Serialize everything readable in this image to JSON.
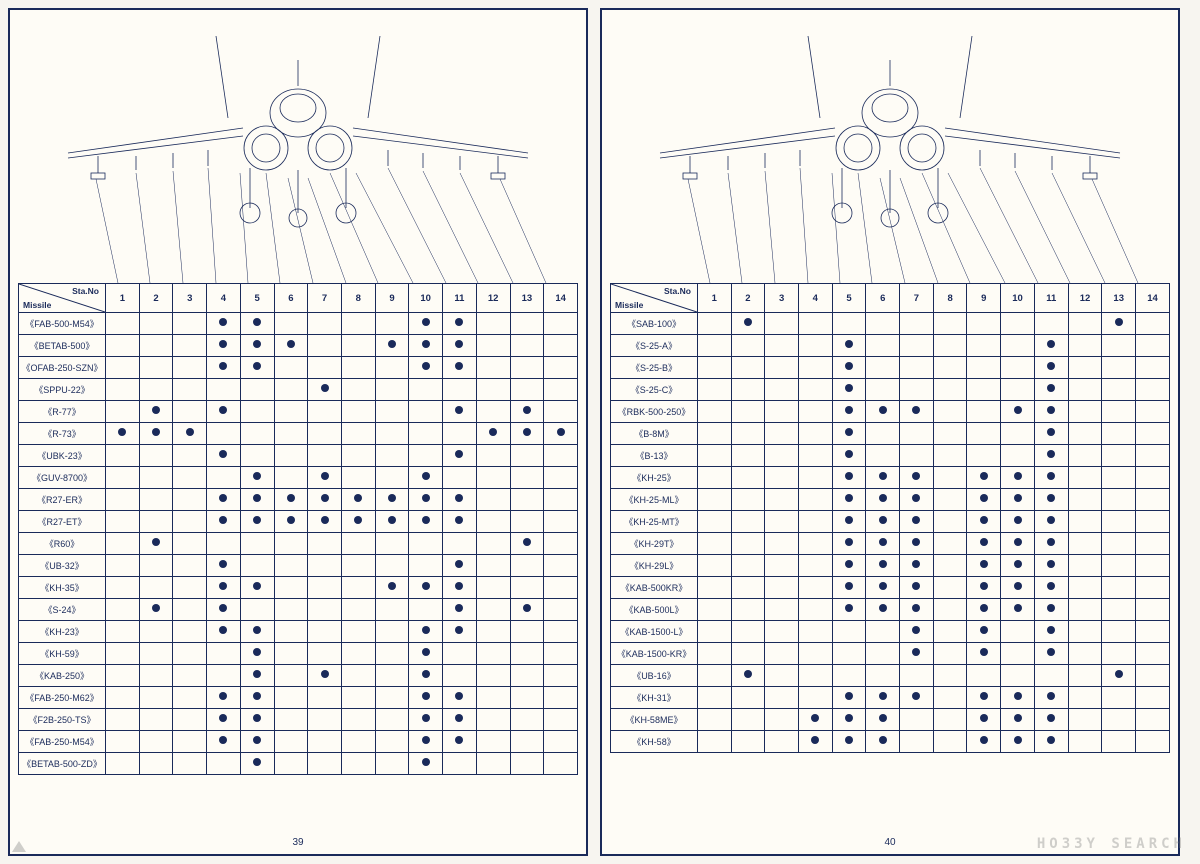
{
  "watermark": "HO33Y SEARCH",
  "header": {
    "sta_label": "Sta.No",
    "missile_label": "Missile"
  },
  "columns": [
    "1",
    "2",
    "3",
    "4",
    "5",
    "6",
    "7",
    "8",
    "9",
    "10",
    "11",
    "12",
    "13",
    "14"
  ],
  "colors": {
    "ink": "#1a2a5a",
    "paper": "#fefcf6",
    "bg": "#f7f5f0"
  },
  "pages": [
    {
      "page_num": "39",
      "rows": [
        {
          "name": "《FAB-500-M54》",
          "dots": [
            4,
            5,
            10,
            11
          ]
        },
        {
          "name": "《BETAB-500》",
          "dots": [
            4,
            5,
            6,
            9,
            10,
            11
          ]
        },
        {
          "name": "《OFAB-250-SZN》",
          "dots": [
            4,
            5,
            10,
            11
          ]
        },
        {
          "name": "《SPPU-22》",
          "dots": [
            7
          ]
        },
        {
          "name": "《R-77》",
          "dots": [
            2,
            4,
            11,
            13
          ]
        },
        {
          "name": "《R-73》",
          "dots": [
            1,
            2,
            3,
            12,
            13,
            14
          ]
        },
        {
          "name": "《UBK-23》",
          "dots": [
            4,
            11
          ]
        },
        {
          "name": "《GUV-8700》",
          "dots": [
            5,
            7,
            10
          ]
        },
        {
          "name": "《R27-ER》",
          "dots": [
            4,
            5,
            6,
            7,
            8,
            9,
            10,
            11
          ]
        },
        {
          "name": "《R27-ET》",
          "dots": [
            4,
            5,
            6,
            7,
            8,
            9,
            10,
            11
          ]
        },
        {
          "name": "《R60》",
          "dots": [
            2,
            13
          ]
        },
        {
          "name": "《UB-32》",
          "dots": [
            4,
            11
          ]
        },
        {
          "name": "《KH-35》",
          "dots": [
            4,
            5,
            9,
            10,
            11
          ]
        },
        {
          "name": "《S-24》",
          "dots": [
            2,
            4,
            11,
            13
          ]
        },
        {
          "name": "《KH-23》",
          "dots": [
            4,
            5,
            10,
            11
          ]
        },
        {
          "name": "《KH-59》",
          "dots": [
            5,
            10
          ]
        },
        {
          "name": "《KAB-250》",
          "dots": [
            5,
            7,
            10
          ]
        },
        {
          "name": "《FAB-250-M62》",
          "dots": [
            4,
            5,
            10,
            11
          ]
        },
        {
          "name": "《F2B-250-TS》",
          "dots": [
            4,
            5,
            10,
            11
          ]
        },
        {
          "name": "《FAB-250-M54》",
          "dots": [
            4,
            5,
            10,
            11
          ]
        },
        {
          "name": "《BETAB-500-ZD》",
          "dots": [
            5,
            10
          ]
        }
      ]
    },
    {
      "page_num": "40",
      "rows": [
        {
          "name": "《SAB-100》",
          "dots": [
            2,
            13
          ]
        },
        {
          "name": "《S-25-A》",
          "dots": [
            5,
            11
          ]
        },
        {
          "name": "《S-25-B》",
          "dots": [
            5,
            11
          ]
        },
        {
          "name": "《S-25-C》",
          "dots": [
            5,
            11
          ]
        },
        {
          "name": "《RBK-500-250》",
          "dots": [
            5,
            6,
            7,
            10,
            11
          ]
        },
        {
          "name": "《B-8M》",
          "dots": [
            5,
            11
          ]
        },
        {
          "name": "《B-13》",
          "dots": [
            5,
            11
          ]
        },
        {
          "name": "《KH-25》",
          "dots": [
            5,
            6,
            7,
            9,
            10,
            11
          ]
        },
        {
          "name": "《KH-25-ML》",
          "dots": [
            5,
            6,
            7,
            9,
            10,
            11
          ]
        },
        {
          "name": "《KH-25-MT》",
          "dots": [
            5,
            6,
            7,
            9,
            10,
            11
          ]
        },
        {
          "name": "《KH-29T》",
          "dots": [
            5,
            6,
            7,
            9,
            10,
            11
          ]
        },
        {
          "name": "《KH-29L》",
          "dots": [
            5,
            6,
            7,
            9,
            10,
            11
          ]
        },
        {
          "name": "《KAB-500KR》",
          "dots": [
            5,
            6,
            7,
            9,
            10,
            11
          ]
        },
        {
          "name": "《KAB-500L》",
          "dots": [
            5,
            6,
            7,
            9,
            10,
            11
          ]
        },
        {
          "name": "《KAB-1500-L》",
          "dots": [
            7,
            9,
            11
          ]
        },
        {
          "name": "《KAB-1500-KR》",
          "dots": [
            7,
            9,
            11
          ]
        },
        {
          "name": "《UB-16》",
          "dots": [
            2,
            13
          ]
        },
        {
          "name": "《KH-31》",
          "dots": [
            5,
            6,
            7,
            9,
            10,
            11
          ]
        },
        {
          "name": "《KH-58ME》",
          "dots": [
            4,
            5,
            6,
            9,
            10,
            11
          ]
        },
        {
          "name": "《KH-58》",
          "dots": [
            4,
            5,
            6,
            9,
            10,
            11
          ]
        }
      ]
    }
  ]
}
